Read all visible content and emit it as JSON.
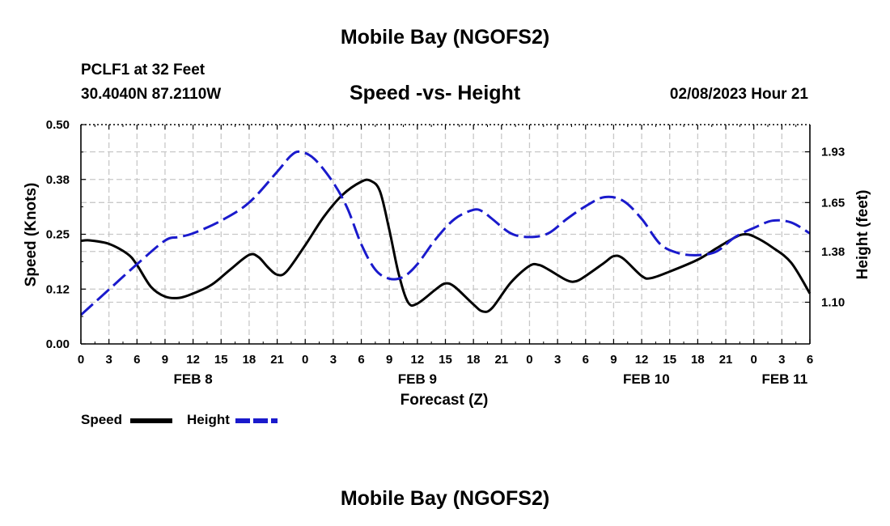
{
  "header": {
    "title": "Mobile Bay (NGOFS2)",
    "station": "PCLF1 at 32 Feet",
    "coords": "30.4040N  87.2110W",
    "subtitle": "Speed -vs- Height",
    "datetime": "02/08/2023 Hour 21"
  },
  "footer": {
    "title": "Mobile Bay (NGOFS2)"
  },
  "legend": {
    "speed_label": "Speed",
    "height_label": "Height"
  },
  "colors": {
    "speed": "#000000",
    "height": "#1a1acc",
    "grid": "#c8c8c8"
  },
  "chart_data": {
    "type": "line",
    "title": "Speed -vs- Height",
    "xlabel": "Forecast (Z)",
    "ylabel_left": "Speed (Knots)",
    "ylabel_right": "Height (feet)",
    "x_unit": "hours from 00Z FEB 8",
    "xlim": [
      0,
      78
    ],
    "ylim_left": [
      0,
      0.5
    ],
    "ylim_right": [
      0.87,
      2.08
    ],
    "x_ticks": [
      0,
      3,
      6,
      9,
      12,
      15,
      18,
      21,
      24,
      27,
      30,
      33,
      36,
      39,
      42,
      45,
      48,
      51,
      54,
      57,
      60,
      63,
      66,
      69,
      72,
      75,
      78
    ],
    "x_tick_labels": [
      "0",
      "3",
      "6",
      "9",
      "12",
      "15",
      "18",
      "21",
      "0",
      "3",
      "6",
      "9",
      "12",
      "15",
      "18",
      "21",
      "0",
      "3",
      "6",
      "9",
      "12",
      "15",
      "18",
      "21",
      "0",
      "3",
      "6"
    ],
    "date_labels": [
      {
        "x": 12,
        "label": "FEB 8"
      },
      {
        "x": 36,
        "label": "FEB 9"
      },
      {
        "x": 60.5,
        "label": "FEB 10"
      },
      {
        "x": 75.3,
        "label": "FEB 11"
      }
    ],
    "y_left_ticks": [
      0.0,
      0.125,
      0.25,
      0.375,
      0.5
    ],
    "y_left_tick_labels": [
      "0.00",
      "0.12",
      "0.25",
      "0.38",
      "0.50"
    ],
    "y_right_ticks": [
      1.1,
      1.38,
      1.65,
      1.93
    ],
    "y_right_tick_labels": [
      "1.10",
      "1.38",
      "1.65",
      "1.93"
    ],
    "series": [
      {
        "name": "Speed",
        "axis": "left",
        "style": "solid",
        "points": [
          [
            0,
            0.235
          ],
          [
            1,
            0.236
          ],
          [
            3,
            0.228
          ],
          [
            5,
            0.205
          ],
          [
            6,
            0.18
          ],
          [
            7.5,
            0.13
          ],
          [
            9,
            0.108
          ],
          [
            10.5,
            0.105
          ],
          [
            12,
            0.115
          ],
          [
            14,
            0.135
          ],
          [
            16,
            0.17
          ],
          [
            18,
            0.203
          ],
          [
            19,
            0.198
          ],
          [
            20,
            0.175
          ],
          [
            21,
            0.158
          ],
          [
            22,
            0.165
          ],
          [
            24,
            0.225
          ],
          [
            26,
            0.29
          ],
          [
            28,
            0.34
          ],
          [
            30,
            0.37
          ],
          [
            31,
            0.372
          ],
          [
            32,
            0.348
          ],
          [
            33,
            0.26
          ],
          [
            34,
            0.16
          ],
          [
            35,
            0.095
          ],
          [
            36,
            0.092
          ],
          [
            38,
            0.125
          ],
          [
            39,
            0.138
          ],
          [
            40,
            0.13
          ],
          [
            42,
            0.09
          ],
          [
            43,
            0.074
          ],
          [
            44,
            0.082
          ],
          [
            46,
            0.14
          ],
          [
            48,
            0.178
          ],
          [
            49,
            0.18
          ],
          [
            50,
            0.17
          ],
          [
            52,
            0.145
          ],
          [
            53,
            0.143
          ],
          [
            54,
            0.155
          ],
          [
            56,
            0.185
          ],
          [
            57,
            0.2
          ],
          [
            58,
            0.195
          ],
          [
            60,
            0.155
          ],
          [
            61,
            0.15
          ],
          [
            63,
            0.165
          ],
          [
            66,
            0.192
          ],
          [
            68,
            0.218
          ],
          [
            70,
            0.243
          ],
          [
            71,
            0.25
          ],
          [
            72,
            0.245
          ],
          [
            74,
            0.22
          ],
          [
            76,
            0.185
          ],
          [
            78,
            0.115
          ]
        ]
      },
      {
        "name": "Height",
        "axis": "right",
        "style": "dashed",
        "points": [
          [
            0,
            1.03
          ],
          [
            3,
            1.17
          ],
          [
            6,
            1.31
          ],
          [
            9,
            1.44
          ],
          [
            10.5,
            1.46
          ],
          [
            12,
            1.48
          ],
          [
            15,
            1.55
          ],
          [
            18,
            1.65
          ],
          [
            21,
            1.82
          ],
          [
            22.5,
            1.91
          ],
          [
            23.5,
            1.93
          ],
          [
            25,
            1.89
          ],
          [
            27,
            1.76
          ],
          [
            28.5,
            1.62
          ],
          [
            30,
            1.42
          ],
          [
            31.5,
            1.28
          ],
          [
            33,
            1.23
          ],
          [
            34.5,
            1.24
          ],
          [
            36,
            1.31
          ],
          [
            38,
            1.45
          ],
          [
            40,
            1.56
          ],
          [
            42,
            1.61
          ],
          [
            43,
            1.6
          ],
          [
            44,
            1.56
          ],
          [
            46,
            1.48
          ],
          [
            48,
            1.46
          ],
          [
            50,
            1.48
          ],
          [
            52,
            1.56
          ],
          [
            54,
            1.63
          ],
          [
            56,
            1.68
          ],
          [
            58,
            1.66
          ],
          [
            60,
            1.56
          ],
          [
            62,
            1.42
          ],
          [
            64,
            1.37
          ],
          [
            66,
            1.36
          ],
          [
            68,
            1.38
          ],
          [
            70,
            1.46
          ],
          [
            72,
            1.51
          ],
          [
            74,
            1.55
          ],
          [
            76,
            1.54
          ],
          [
            78,
            1.48
          ]
        ]
      }
    ]
  }
}
